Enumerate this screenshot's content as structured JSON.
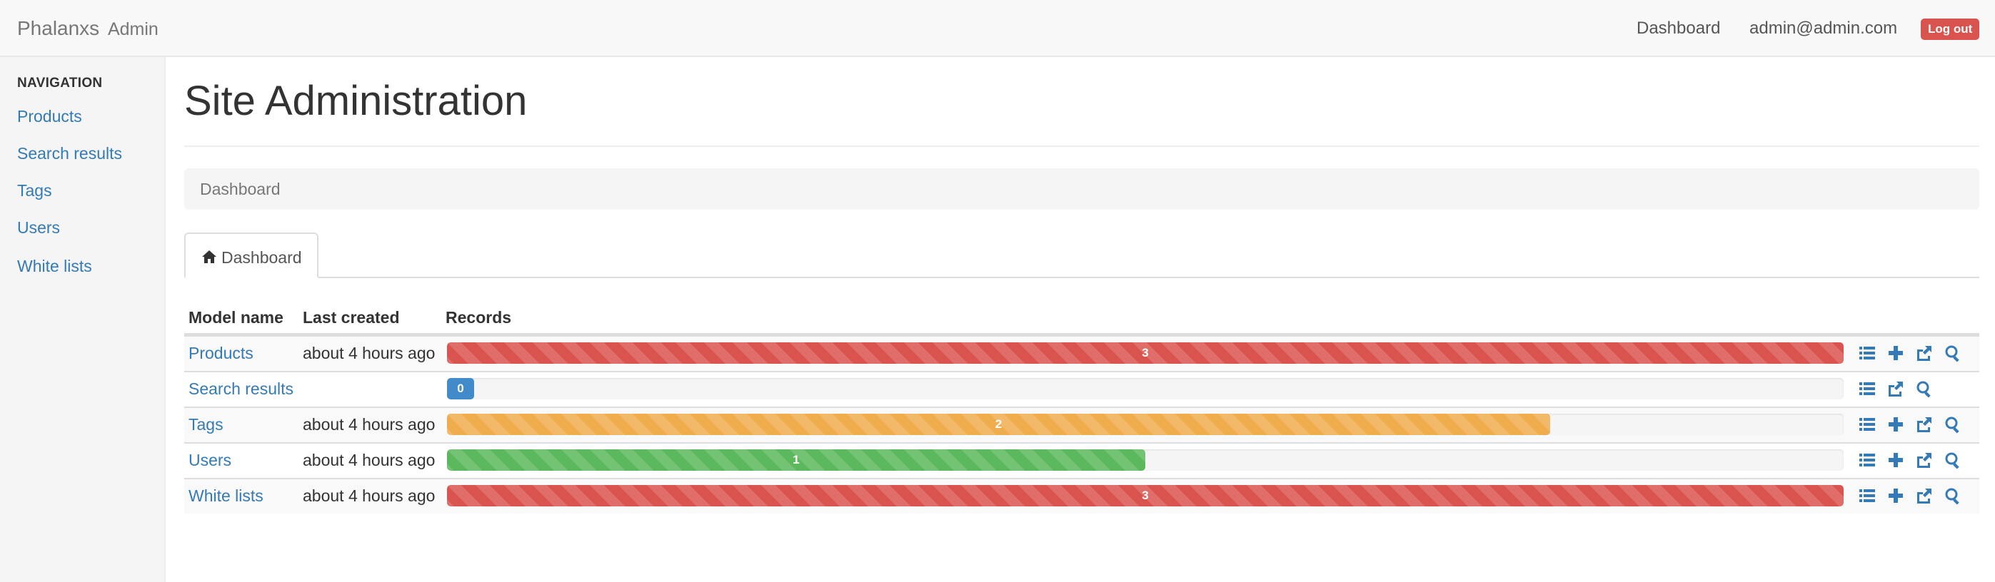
{
  "navbar": {
    "brand_name": "Phalanxs",
    "brand_suffix": "Admin",
    "dashboard_link": "Dashboard",
    "user_email": "admin@admin.com",
    "logout_label": "Log out"
  },
  "sidebar": {
    "header": "Navigation",
    "items": [
      {
        "label": "Products"
      },
      {
        "label": "Search results"
      },
      {
        "label": "Tags"
      },
      {
        "label": "Users"
      },
      {
        "label": "White lists"
      }
    ]
  },
  "main": {
    "title": "Site Administration",
    "breadcrumb": "Dashboard",
    "tab_label": "Dashboard",
    "table": {
      "headers": {
        "model": "Model name",
        "last_created": "Last created",
        "records": "Records"
      },
      "rows": [
        {
          "model": "Products",
          "last_created": "about 4 hours ago",
          "records": "3",
          "fill_fraction": 1.0,
          "color": "#d9534f",
          "actions": [
            "list-icon",
            "plus-icon",
            "export-icon",
            "search-icon"
          ]
        },
        {
          "model": "Search results",
          "last_created": "",
          "records": "0",
          "fill_fraction": 0.0,
          "color": "#428bca",
          "actions": [
            "list-icon",
            "export-icon",
            "search-icon"
          ]
        },
        {
          "model": "Tags",
          "last_created": "about 4 hours ago",
          "records": "2",
          "fill_fraction": 0.79,
          "color": "#f0ad4e",
          "actions": [
            "list-icon",
            "plus-icon",
            "export-icon",
            "search-icon"
          ]
        },
        {
          "model": "Users",
          "last_created": "about 4 hours ago",
          "records": "1",
          "fill_fraction": 0.5,
          "color": "#5cb85c",
          "actions": [
            "list-icon",
            "plus-icon",
            "export-icon",
            "search-icon"
          ]
        },
        {
          "model": "White lists",
          "last_created": "about 4 hours ago",
          "records": "3",
          "fill_fraction": 1.0,
          "color": "#d9534f",
          "actions": [
            "list-icon",
            "plus-icon",
            "export-icon",
            "search-icon"
          ]
        }
      ]
    }
  },
  "colors": {
    "link": "#337ab7",
    "icon": "#337ab7",
    "danger": "#d9534f"
  }
}
